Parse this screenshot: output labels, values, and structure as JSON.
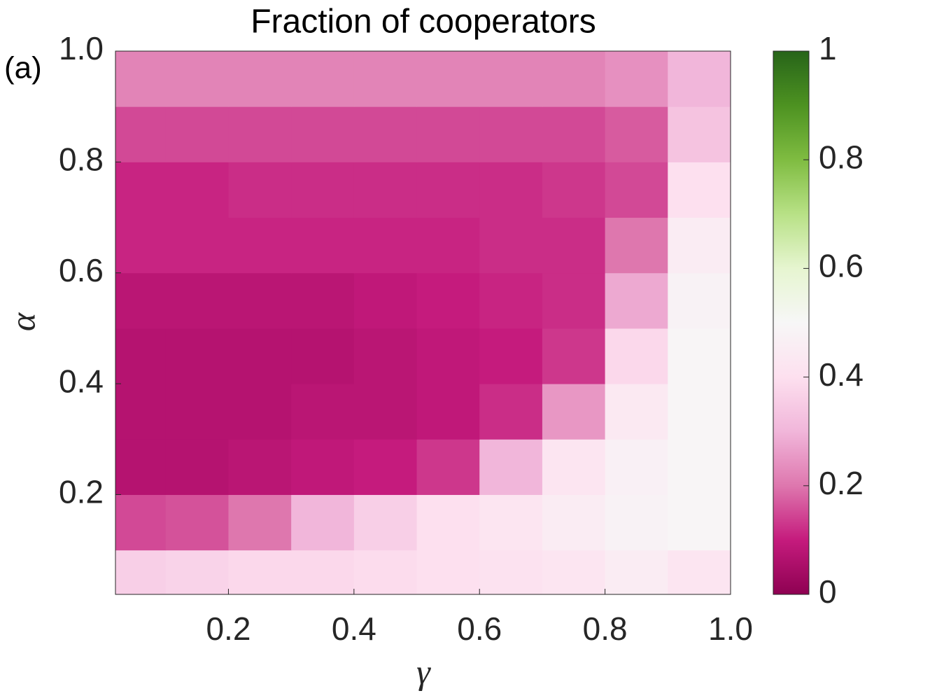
{
  "chart_data": {
    "type": "heatmap",
    "title": "Fraction of cooperators",
    "panel_label": "(a)",
    "x_label": "γ",
    "y_label": "α",
    "x_edges": [
      0.02,
      0.1,
      0.2,
      0.3,
      0.4,
      0.5,
      0.6,
      0.7,
      0.8,
      0.9,
      1.0
    ],
    "y_edges": [
      0.02,
      0.1,
      0.2,
      0.3,
      0.4,
      0.5,
      0.6,
      0.7,
      0.8,
      0.9,
      1.0
    ],
    "values": [
      [
        0.36,
        0.37,
        0.38,
        0.38,
        0.39,
        0.4,
        0.41,
        0.42,
        0.45,
        0.42
      ],
      [
        0.15,
        0.16,
        0.2,
        0.3,
        0.36,
        0.4,
        0.42,
        0.45,
        0.48,
        0.49
      ],
      [
        0.07,
        0.07,
        0.08,
        0.09,
        0.1,
        0.13,
        0.3,
        0.42,
        0.47,
        0.49
      ],
      [
        0.07,
        0.07,
        0.07,
        0.08,
        0.08,
        0.09,
        0.12,
        0.25,
        0.44,
        0.49
      ],
      [
        0.07,
        0.07,
        0.07,
        0.07,
        0.08,
        0.09,
        0.1,
        0.13,
        0.38,
        0.49
      ],
      [
        0.08,
        0.08,
        0.08,
        0.08,
        0.09,
        0.1,
        0.11,
        0.12,
        0.28,
        0.48
      ],
      [
        0.11,
        0.11,
        0.11,
        0.11,
        0.11,
        0.11,
        0.12,
        0.12,
        0.2,
        0.45
      ],
      [
        0.11,
        0.11,
        0.12,
        0.12,
        0.12,
        0.12,
        0.12,
        0.13,
        0.15,
        0.4
      ],
      [
        0.15,
        0.15,
        0.15,
        0.15,
        0.15,
        0.15,
        0.15,
        0.15,
        0.17,
        0.33
      ],
      [
        0.22,
        0.22,
        0.22,
        0.22,
        0.22,
        0.22,
        0.22,
        0.22,
        0.24,
        0.3
      ]
    ],
    "xlim": [
      0.02,
      1.0
    ],
    "ylim": [
      0.02,
      1.0
    ],
    "xticks": [
      0.2,
      0.4,
      0.6,
      0.8,
      {
        "value": 1.0,
        "label": "1.0"
      }
    ],
    "yticks": [
      0.2,
      0.4,
      0.6,
      0.8,
      {
        "value": 1.0,
        "label": "1.0"
      }
    ],
    "clim": [
      0,
      1
    ],
    "cticks": [
      0,
      0.2,
      0.4,
      0.6,
      0.8,
      1
    ],
    "colormap": [
      "#8e0152",
      "#c51b7d",
      "#de77ae",
      "#f1b6da",
      "#fde0ef",
      "#f7f7f7",
      "#e6f5d0",
      "#b8e186",
      "#7fbc41",
      "#4d9221",
      "#276419"
    ]
  }
}
